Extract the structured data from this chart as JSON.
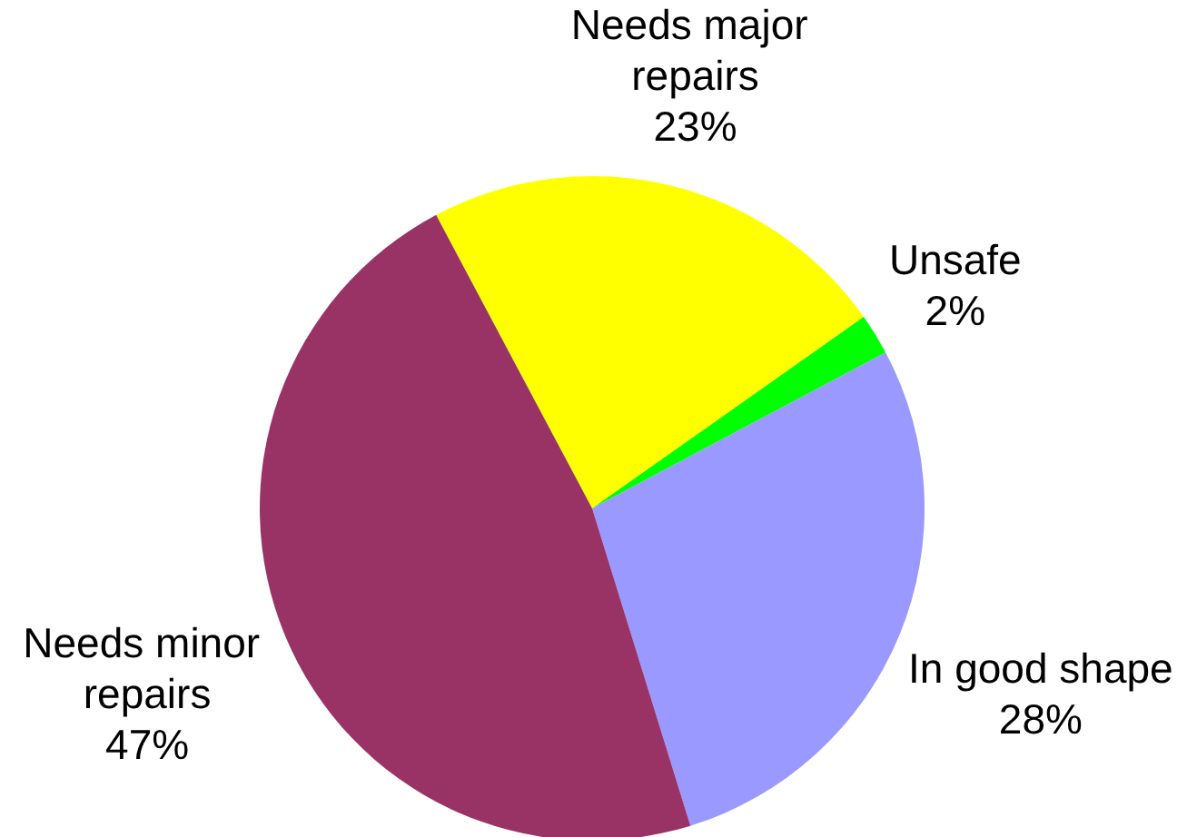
{
  "chart_data": {
    "type": "pie",
    "categories": [
      "Needs major repairs",
      "Unsafe",
      "In good shape",
      "Needs minor repairs"
    ],
    "values": [
      23,
      2,
      28,
      47
    ],
    "colors": [
      "#ffff00",
      "#00ff00",
      "#9999ff",
      "#993366"
    ],
    "value_labels": [
      "23%",
      "2%",
      "28%",
      "47%"
    ]
  }
}
